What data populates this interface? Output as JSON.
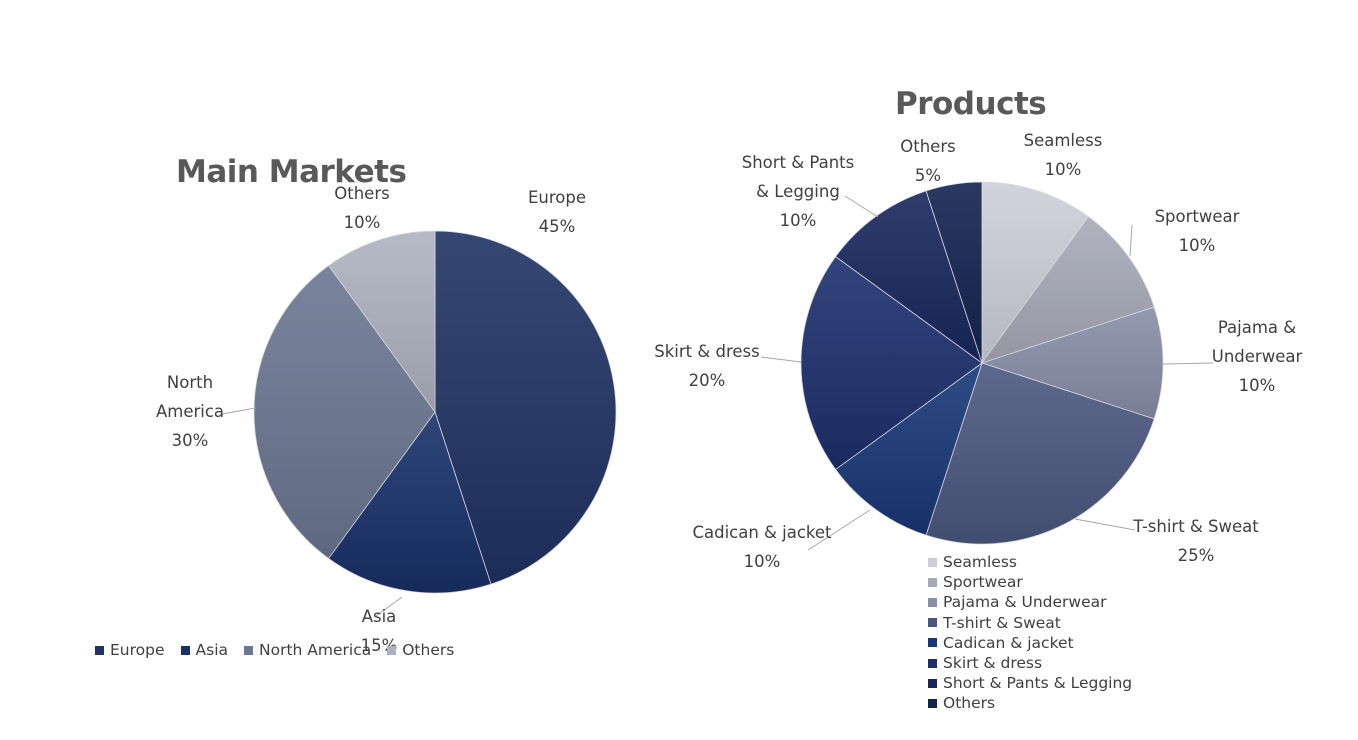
{
  "chart_data": [
    {
      "type": "pie",
      "title": "Main Markets",
      "categories": [
        "Europe",
        "Asia",
        "North America",
        "Others"
      ],
      "values": [
        45,
        15,
        30,
        10
      ],
      "data_labels": [
        {
          "lines": [
            "Europe",
            "45%"
          ]
        },
        {
          "lines": [
            "Asia",
            "15%"
          ]
        },
        {
          "lines": [
            "North",
            "America",
            "30%"
          ]
        },
        {
          "lines": [
            "Others",
            "10%"
          ]
        }
      ],
      "colors": [
        "#1f3263",
        "#183068",
        "#6b7692",
        "#aeb1c0"
      ],
      "legend_position": "bottom"
    },
    {
      "type": "pie",
      "title": "Products",
      "categories": [
        "Seamless",
        "Sportwear",
        "Pajama & Underwear",
        "T-shirt & Sweat",
        "Cadican & jacket",
        "Skirt & dress",
        "Short & Pants & Legging",
        "Others"
      ],
      "values": [
        10,
        10,
        10,
        25,
        10,
        20,
        10,
        5
      ],
      "data_labels": [
        {
          "lines": [
            "Seamless",
            "10%"
          ]
        },
        {
          "lines": [
            "Sportwear",
            "10%"
          ]
        },
        {
          "lines": [
            "Pajama &",
            "Underwear",
            "10%"
          ]
        },
        {
          "lines": [
            "T-shirt & Sweat",
            "25%"
          ]
        },
        {
          "lines": [
            "Cadican & jacket",
            "10%"
          ]
        },
        {
          "lines": [
            "Skirt & dress",
            "20%"
          ]
        },
        {
          "lines": [
            "Short & Pants",
            "& Legging",
            "10%"
          ]
        },
        {
          "lines": [
            "Others",
            "5%"
          ]
        }
      ],
      "colors": [
        "#cdcfd8",
        "#a7aab8",
        "#878ea6",
        "#4a577f",
        "#183776",
        "#1b2f6c",
        "#16275c",
        "#13224f"
      ],
      "legend_position": "bottom-right"
    }
  ]
}
